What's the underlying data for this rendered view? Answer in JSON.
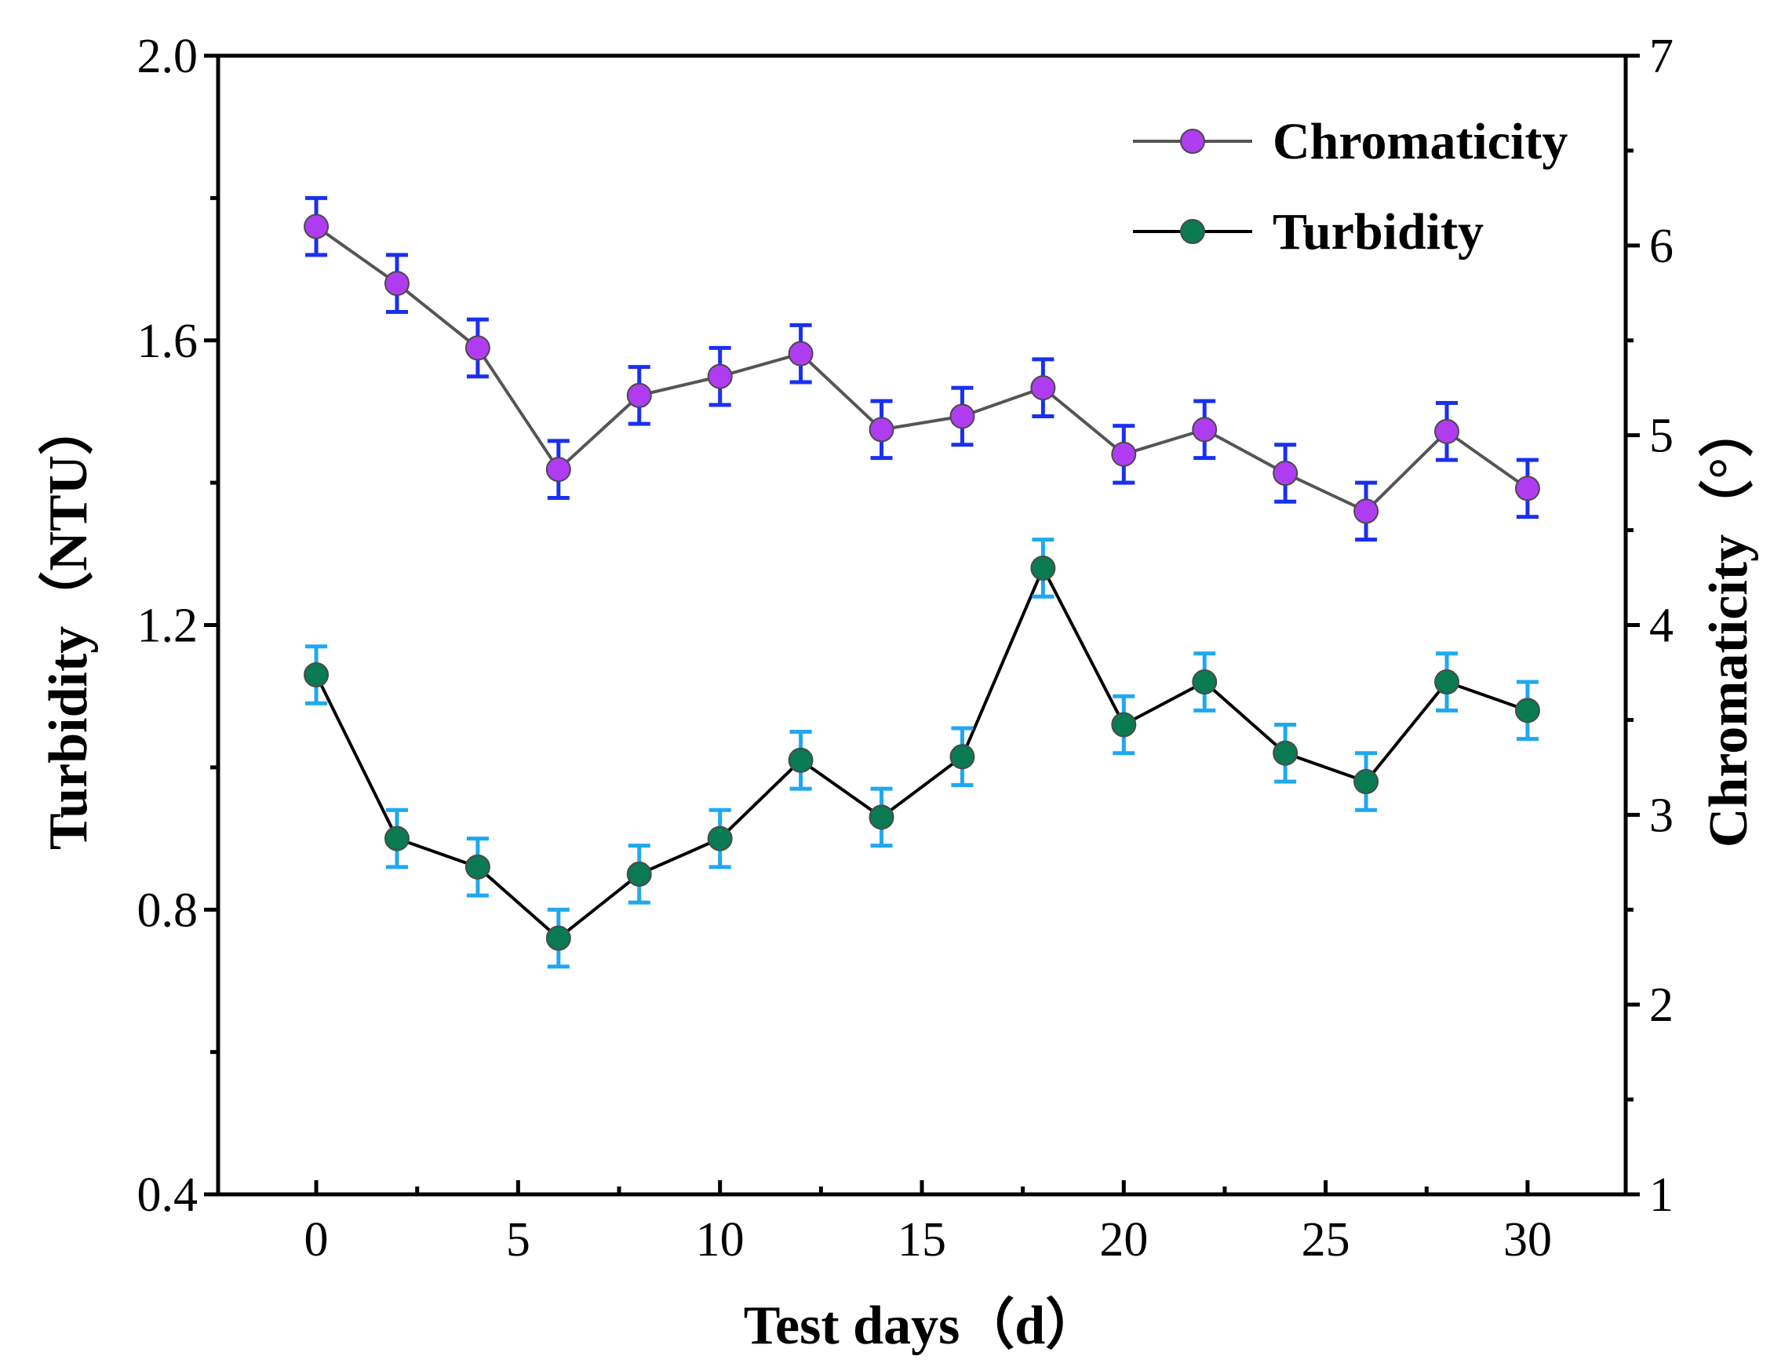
{
  "chart_data": {
    "type": "line",
    "title": "",
    "xlabel": "Test days（d）",
    "ylabel_left": "Turbidity（NTU）",
    "ylabel_right": "Chromaticity（°）",
    "xlim": [
      -2.43,
      32.43
    ],
    "ylim_left": [
      0.4,
      2.0
    ],
    "ylim_right": [
      1,
      7
    ],
    "x_ticks": [
      0,
      5,
      10,
      15,
      20,
      25,
      30
    ],
    "x_tick_labels": [
      "0",
      "5",
      "10",
      "15",
      "20",
      "25",
      "30"
    ],
    "y_left_ticks": [
      0.4,
      0.8,
      1.2,
      1.6,
      2.0
    ],
    "y_left_tick_labels": [
      "0.4",
      "0.8",
      "1.2",
      "1.6",
      "2.0"
    ],
    "y_right_ticks": [
      1,
      2,
      3,
      4,
      5,
      6,
      7
    ],
    "y_right_tick_labels": [
      "1",
      "2",
      "3",
      "4",
      "5",
      "6",
      "7"
    ],
    "legend_position": "top-right",
    "grid": false,
    "x": [
      0,
      2,
      4,
      6,
      8,
      10,
      12,
      14,
      16,
      18,
      20,
      22,
      24,
      26,
      28,
      30
    ],
    "series": [
      {
        "name": "Chromaticity",
        "axis": "right",
        "values": [
          6.1,
          5.8,
          5.46,
          4.82,
          5.21,
          5.31,
          5.43,
          5.03,
          5.1,
          5.25,
          4.9,
          5.03,
          4.8,
          4.6,
          5.02,
          4.72
        ],
        "error": [
          0.15,
          0.15,
          0.15,
          0.15,
          0.15,
          0.15,
          0.15,
          0.15,
          0.15,
          0.15,
          0.15,
          0.15,
          0.15,
          0.15,
          0.15,
          0.15
        ],
        "line_color": "#555555",
        "marker_color": "#b03cf2",
        "error_color": "#1a30f0"
      },
      {
        "name": "Turbidity",
        "axis": "left",
        "values": [
          1.13,
          0.9,
          0.86,
          0.76,
          0.85,
          0.9,
          1.01,
          0.93,
          1.015,
          1.28,
          1.06,
          1.12,
          1.02,
          0.98,
          1.12,
          1.08
        ],
        "error": [
          0.04,
          0.04,
          0.04,
          0.04,
          0.04,
          0.04,
          0.04,
          0.04,
          0.04,
          0.04,
          0.04,
          0.04,
          0.04,
          0.04,
          0.04,
          0.04
        ],
        "line_color": "#000000",
        "marker_color": "#0a7a52",
        "error_color": "#1fa8f0"
      }
    ]
  }
}
